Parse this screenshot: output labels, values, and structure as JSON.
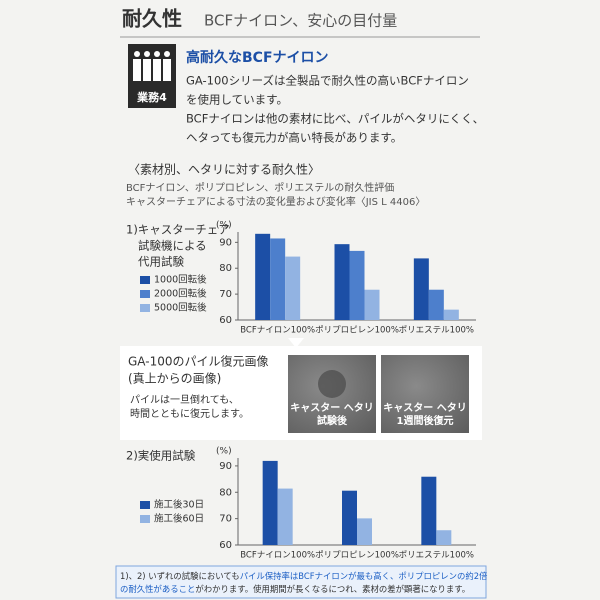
{
  "header": {
    "title": "耐久性",
    "subtitle": "BCFナイロン、安心の目付量"
  },
  "badge": {
    "label": "業務4"
  },
  "intro": {
    "heading": "高耐久なBCFナイロン",
    "lines": [
      "GA-100シリーズは全製品で耐久性の高いBCFナイロン",
      "を使用しています。",
      "BCFナイロンは他の素材に比べ、パイルがヘタリにくく、",
      "ヘタっても復元力が高い特長があります。"
    ]
  },
  "section": {
    "heading": "〈素材別、ヘタリに対する耐久性〉",
    "lines": [
      "BCFナイロン、ポリプロピレン、ポリエステルの耐久性評価",
      "キャスターチェアによる寸法の変化量および変化率〈JIS L 4406〉"
    ]
  },
  "chart_data": [
    {
      "type": "bar",
      "title_lines": [
        "1)キャスターチェア",
        "試験機による",
        "代用試験"
      ],
      "y_unit": "(%)",
      "categories": [
        "BCFナイロン100%",
        "ポリプロピレン100%",
        "ポリエステル100%"
      ],
      "series": [
        {
          "name": "1000回転後",
          "color": "#1c4fa6",
          "values": [
            93.3,
            89.3,
            83.8
          ]
        },
        {
          "name": "2000回転後",
          "color": "#4d7fcc",
          "values": [
            91.5,
            86.7,
            71.7
          ]
        },
        {
          "name": "5000回転後",
          "color": "#92b3e2",
          "values": [
            84.5,
            71.7,
            64
          ]
        }
      ],
      "ylim": [
        60,
        94
      ],
      "yticks": [
        60,
        70,
        80,
        90
      ]
    },
    {
      "type": "bar",
      "title_lines": [
        "2)実使用試験"
      ],
      "y_unit": "(%)",
      "categories": [
        "BCFナイロン100%",
        "ポリプロピレン100%",
        "ポリエステル100%"
      ],
      "series": [
        {
          "name": "施工後30日",
          "color": "#1c4fa6",
          "values": [
            91.9,
            80.6,
            85.9
          ]
        },
        {
          "name": "施工後60日",
          "color": "#92b3e2",
          "values": [
            81.4,
            70.1,
            65.6
          ]
        }
      ],
      "ylim": [
        60,
        93
      ],
      "yticks": [
        60,
        70,
        80,
        90
      ]
    }
  ],
  "restore": {
    "title_lines": [
      "GA-100のパイル復元画像",
      "(真上からの画像)"
    ],
    "text_lines": [
      "パイルは一旦倒れても、",
      "時間とともに復元します。"
    ],
    "images": [
      {
        "caption_lines": [
          "キャスター ヘタリ",
          "試験後"
        ]
      },
      {
        "caption_lines": [
          "キャスター ヘタリ",
          "1週間後復元"
        ]
      }
    ]
  },
  "footnote": {
    "lines": [
      [
        {
          "text": "1)、2) いずれの試験においても",
          "color": "#333333"
        },
        {
          "text": "パイル保持率はBCFナイロンが最も高く、ポリプロピレンの約2倍",
          "color": "#1c5fc4"
        }
      ],
      [
        {
          "text": "の耐久性があること",
          "color": "#1c5fc4"
        },
        {
          "text": "がわかります。使用期間が長くなるにつれ、素材の差が顕著になります。",
          "color": "#333333"
        }
      ]
    ]
  }
}
